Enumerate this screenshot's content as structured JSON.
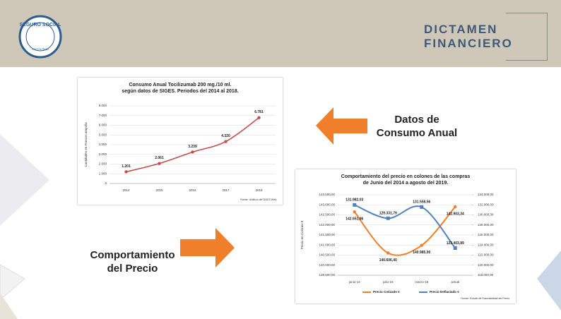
{
  "header": {
    "logo": [
      "SEGURO SOCIAL",
      "COSTA RICA"
    ],
    "title": [
      "DICTAMEN",
      "FINANCIERO"
    ]
  },
  "labels": {
    "consumo": [
      "Datos de",
      "Consumo Anual"
    ],
    "precio": [
      "Comportamiento",
      "del Precio"
    ]
  },
  "chart_data": [
    {
      "type": "line",
      "title": [
        "Consumo Anual Tocilizumab 200 mg./10 ml.",
        "según datos de SIGES. Periodos del 2014 al 2018."
      ],
      "ylabel": "Cantidades en Frascos ampolla",
      "source": "Fuente: Gráficos del SIGES Web.",
      "categories": [
        "2014",
        "2015",
        "2016",
        "2017",
        "2018"
      ],
      "values": [
        1201,
        2061,
        3239,
        4320,
        6781
      ],
      "value_labels": [
        "1.201",
        "2.061",
        "3.239",
        "4.320",
        "6.781"
      ],
      "color": "#c0504d",
      "ylim": [
        0,
        8000
      ],
      "yticks": [
        0,
        {
          "value": 1000,
          "label": "1.000"
        },
        {
          "value": 2000,
          "label": "2.000"
        },
        {
          "value": 3000,
          "label": "3.000"
        },
        {
          "value": 4000,
          "label": "4.000"
        },
        {
          "value": 5000,
          "label": "5.000"
        },
        {
          "value": 6000,
          "label": "6.000"
        },
        {
          "value": 7000,
          "label": "7.000"
        },
        {
          "value": 8000,
          "label": "8.000"
        }
      ],
      "grid": true
    },
    {
      "type": "line",
      "title": [
        "Comportamiento del precio en colones de las compras",
        "de Junio del 2014 a agosto del 2019."
      ],
      "ylabel": "Precio en Colones ¢",
      "source": "Fuente: Estudio de Razonabilidad del Precio.",
      "categories": [
        "junio-14",
        "julio-15",
        "marzo-16",
        "actual"
      ],
      "series": [
        {
          "name": "Precio Cotizado ¢",
          "color": "#f07f2c",
          "values": [
            142651.96,
            140606.4,
            140985.0,
            142903.34
          ],
          "value_labels": [
            "142.651,96",
            "140.606,40",
            "140.985,00",
            "142.903,34"
          ]
        },
        {
          "name": "Precio Deflactado ¢",
          "color": "#4f81bd",
          "axis": "y2",
          "values": [
            131982.03,
            129331.79,
            131558.56,
            123403.89
          ],
          "value_labels": [
            "131.982,03",
            "129.331,79",
            "131.558,56",
            "123.403,89"
          ]
        }
      ],
      "ylim": [
        139500,
        143500
      ],
      "yticks": [
        {
          "value": 139500,
          "label": "139.500,00"
        },
        {
          "value": 140000,
          "label": "140.000,00"
        },
        {
          "value": 140500,
          "label": "140.500,00"
        },
        {
          "value": 141000,
          "label": "141.000,00"
        },
        {
          "value": 141500,
          "label": "141.500,00"
        },
        {
          "value": 142000,
          "label": "142.000,00"
        },
        {
          "value": 142500,
          "label": "142.500,00"
        },
        {
          "value": 143000,
          "label": "143.000,00"
        },
        {
          "value": 143500,
          "label": "143.500,00"
        }
      ],
      "y2lim": [
        118000,
        134000
      ],
      "y2ticks": [
        {
          "value": 118000,
          "label": "118.000,00"
        },
        {
          "value": 120000,
          "label": "120.000,00"
        },
        {
          "value": 122000,
          "label": "122.000,00"
        },
        {
          "value": 124000,
          "label": "124.000,00"
        },
        {
          "value": 126000,
          "label": "126.000,00"
        },
        {
          "value": 128000,
          "label": "128.000,00"
        },
        {
          "value": 130000,
          "label": "130.000,00"
        },
        {
          "value": 132000,
          "label": "132.000,00"
        },
        {
          "value": 134000,
          "label": "134.000,00"
        }
      ],
      "grid": true
    }
  ]
}
